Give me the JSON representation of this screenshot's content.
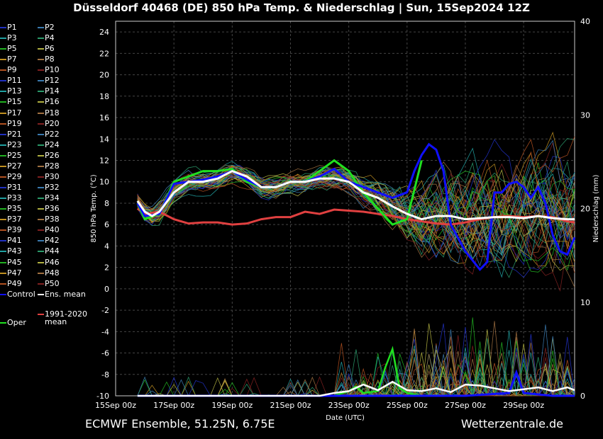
{
  "title": "Düsseldorf 40468 (DE)  850 hPa Temp. & Niederschlag | Sun, 15Sep2024 12Z",
  "footer_left": "ECMWF Ensemble, 51.25N, 6.75E",
  "footer_right": "Wetterzentrale.de",
  "member_colors": [
    "#2030c0",
    "#3a7ab0",
    "#20a0a0",
    "#2a9a6a",
    "#20b020",
    "#b0b040",
    "#c09020",
    "#a07040",
    "#b05020",
    "#802020"
  ],
  "legend_extra": {
    "control": "Control",
    "ens_mean": "Ens. mean",
    "clim_line1": "1991-2020",
    "clim_line2": "mean",
    "oper": "Oper"
  },
  "chart_data": {
    "type": "line",
    "xlabel": "Date (UTC)",
    "ylabel": "850 hPa Temp. (°C)",
    "y2label": "Niederschlag (mm)",
    "xlim_days": [
      0,
      15.75
    ],
    "ylim": [
      -10,
      25
    ],
    "y2lim": [
      0,
      40
    ],
    "x_ticks": [
      {
        "day": 0,
        "label": "15Sep 00z"
      },
      {
        "day": 2,
        "label": "17Sep 00z"
      },
      {
        "day": 4,
        "label": "19Sep 00z"
      },
      {
        "day": 6,
        "label": "21Sep 00z"
      },
      {
        "day": 8,
        "label": "23Sep 00z"
      },
      {
        "day": 10,
        "label": "25Sep 00z"
      },
      {
        "day": 12,
        "label": "27Sep 00z"
      },
      {
        "day": 14,
        "label": "29Sep 00z"
      }
    ],
    "y_ticks": [
      -10,
      -8,
      -6,
      -4,
      -2,
      0,
      2,
      4,
      6,
      8,
      10,
      12,
      14,
      16,
      18,
      20,
      22,
      24
    ],
    "y2_ticks": [
      0,
      10,
      20,
      30,
      40
    ],
    "grid": true,
    "ens_mean": {
      "x": [
        0.75,
        1,
        1.25,
        1.5,
        2,
        2.5,
        3,
        3.5,
        4,
        4.5,
        5,
        5.5,
        6,
        6.5,
        7,
        7.5,
        8,
        8.5,
        9,
        9.5,
        10,
        10.5,
        11,
        11.5,
        12,
        12.5,
        13,
        13.5,
        14,
        14.5,
        15,
        15.5,
        15.75
      ],
      "y": [
        8.2,
        7.2,
        6.8,
        7.2,
        9,
        10,
        10,
        10.3,
        11,
        10.5,
        9.5,
        9.5,
        10,
        10,
        10.3,
        10.3,
        10,
        9,
        8.5,
        7.7,
        7,
        6.5,
        6.8,
        6.8,
        6.5,
        6.6,
        6.7,
        6.7,
        6.6,
        6.8,
        6.6,
        6.5,
        6.5
      ]
    },
    "control": {
      "x": [
        0.75,
        1,
        1.5,
        2,
        2.5,
        3,
        3.5,
        4,
        4.5,
        5,
        5.5,
        6,
        6.5,
        7,
        7.5,
        8,
        8.5,
        9,
        9.5,
        10,
        10.25,
        10.5,
        10.75,
        11,
        11.25,
        11.5,
        12,
        12.5,
        12.75,
        13,
        13.25,
        13.5,
        13.75,
        14,
        14.25,
        14.5,
        14.75,
        15,
        15.25,
        15.5,
        15.75
      ],
      "y": [
        8,
        6.8,
        7,
        9.8,
        10,
        10.2,
        10.5,
        11,
        10.2,
        9.5,
        9.5,
        10,
        10,
        10.5,
        11.2,
        10,
        9.5,
        9,
        8.5,
        9,
        11,
        12.5,
        13.5,
        13,
        11,
        6,
        3.5,
        1.8,
        2.5,
        9,
        9,
        9.8,
        10,
        9.5,
        8.5,
        9.5,
        8,
        5,
        3.5,
        3.2,
        4.8
      ]
    },
    "oper": {
      "x": [
        0.75,
        1,
        1.5,
        2,
        2.5,
        3,
        3.5,
        4,
        4.5,
        5,
        5.5,
        6,
        6.5,
        7,
        7.5,
        8,
        8.5,
        9,
        9.5,
        10,
        10.5
      ],
      "y": [
        8,
        6.5,
        7,
        10,
        10.5,
        11,
        11,
        11.2,
        10,
        9.5,
        9.5,
        10,
        10,
        11,
        12,
        11,
        9,
        7.5,
        6,
        6.5,
        12
      ]
    },
    "climatology_mean": {
      "x": [
        0.75,
        1,
        1.5,
        2,
        2.5,
        3,
        3.5,
        4,
        4.5,
        5,
        5.5,
        6,
        6.5,
        7,
        7.5,
        8,
        8.5,
        9,
        9.5,
        10,
        10.5,
        11,
        11.5,
        12,
        12.5,
        13,
        13.5,
        14,
        14.5,
        15,
        15.5,
        15.75
      ],
      "y": [
        7.5,
        7,
        7.2,
        6.5,
        6.1,
        6.2,
        6.2,
        6,
        6.1,
        6.5,
        6.7,
        6.7,
        7.2,
        7,
        7.4,
        7.3,
        7.2,
        7,
        6.8,
        6.5,
        6.3,
        6.1,
        6,
        6.2,
        6.5,
        6.7,
        6.8,
        6.7,
        6.8,
        6.7,
        6.3,
        6.2
      ]
    },
    "members_spread": {
      "x": [
        0.75,
        2,
        4,
        6,
        8,
        9,
        10,
        11,
        12,
        13,
        14,
        15,
        15.75
      ],
      "sd": [
        1,
        0.6,
        0.6,
        0.7,
        0.8,
        1.2,
        2,
        3,
        3.5,
        3.8,
        4,
        4.2,
        4.3
      ]
    },
    "precip_ens_mean": {
      "x": [
        0.75,
        2,
        4,
        6,
        7,
        7.5,
        8,
        8.5,
        9,
        9.5,
        10,
        10.5,
        11,
        11.5,
        12,
        12.5,
        13,
        13.5,
        14,
        14.5,
        15,
        15.5,
        15.75
      ],
      "y": [
        0,
        0,
        0,
        0,
        0,
        0.3,
        0.5,
        1.2,
        0.6,
        1.5,
        0.6,
        0.5,
        0.8,
        0.4,
        1.2,
        1.1,
        0.8,
        0.5,
        0.7,
        0.9,
        0.5,
        0.9,
        0.6
      ]
    },
    "precip_control": {
      "x": [
        0.75,
        8,
        9,
        10,
        12,
        13.5,
        13.75,
        14,
        15,
        15.75
      ],
      "y": [
        0,
        0,
        0,
        0,
        0,
        0.3,
        2.5,
        0.3,
        0,
        0
      ]
    },
    "precip_oper": {
      "x": [
        0.75,
        7.5,
        8,
        8.25,
        8.5,
        9,
        9.25,
        9.5,
        9.75,
        10,
        10.5
      ],
      "y": [
        0,
        0,
        0.5,
        1,
        0.3,
        0.5,
        3,
        5,
        0.8,
        0.3,
        0
      ]
    }
  }
}
